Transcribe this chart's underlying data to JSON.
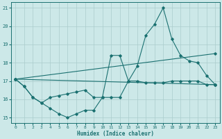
{
  "xlabel": "Humidex (Indice chaleur)",
  "bg_color": "#cce8e8",
  "line_color": "#1a7070",
  "grid_color": "#aacccc",
  "xlim": [
    -0.5,
    23.5
  ],
  "ylim": [
    14.7,
    21.3
  ],
  "yticks": [
    15,
    16,
    17,
    18,
    19,
    20,
    21
  ],
  "xticks": [
    0,
    1,
    2,
    3,
    4,
    5,
    6,
    7,
    8,
    9,
    10,
    11,
    12,
    13,
    14,
    15,
    16,
    17,
    18,
    19,
    20,
    21,
    22,
    23
  ],
  "series": [
    {
      "x": [
        0,
        1,
        2,
        3,
        4,
        5,
        6,
        7,
        8,
        9,
        10,
        11,
        12,
        13,
        14,
        15,
        16,
        17,
        18,
        19,
        20,
        21,
        22,
        23
      ],
      "y": [
        17.1,
        16.7,
        16.1,
        15.8,
        15.5,
        15.2,
        15.0,
        15.2,
        15.4,
        15.4,
        16.1,
        16.1,
        16.1,
        17.0,
        17.0,
        16.9,
        16.9,
        16.9,
        17.0,
        17.0,
        17.0,
        17.0,
        16.8,
        16.8
      ]
    },
    {
      "x": [
        0,
        1,
        2,
        3,
        4,
        5,
        6,
        7,
        8,
        9,
        10,
        11,
        12,
        13,
        14,
        15,
        16,
        17,
        18,
        19,
        20,
        21,
        22,
        23
      ],
      "y": [
        17.1,
        16.7,
        16.1,
        15.8,
        16.1,
        16.2,
        16.3,
        16.4,
        16.5,
        16.1,
        16.1,
        18.4,
        18.4,
        17.0,
        17.8,
        19.5,
        20.1,
        21.0,
        19.3,
        18.4,
        18.1,
        18.0,
        17.3,
        16.8
      ]
    },
    {
      "x": [
        0,
        23
      ],
      "y": [
        17.1,
        18.5
      ]
    },
    {
      "x": [
        0,
        23
      ],
      "y": [
        17.1,
        16.8
      ]
    }
  ]
}
